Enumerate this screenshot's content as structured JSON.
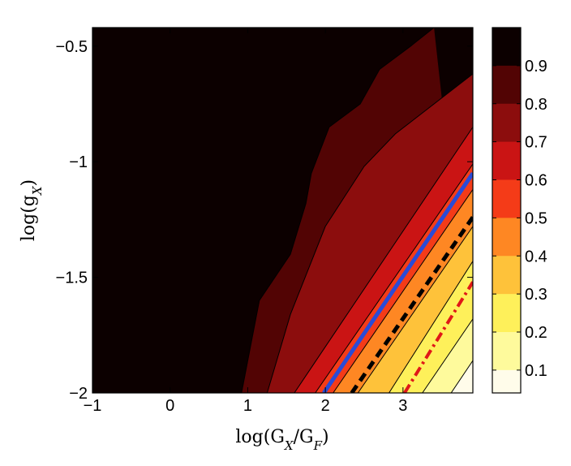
{
  "chart_data": {
    "type": "contour",
    "xlabel": "log(G_X/G_F)",
    "ylabel": "log(g_X)",
    "xlim": [
      -1,
      3.9
    ],
    "ylim": [
      -2,
      -0.42
    ],
    "x_ticks": [
      -1,
      0,
      1,
      2,
      3
    ],
    "x_tick_labels": [
      "−1",
      "0",
      "1",
      "2",
      "3"
    ],
    "y_ticks": [
      -2,
      -1.5,
      -1,
      -0.5
    ],
    "y_tick_labels": [
      "−2",
      "−1.5",
      "−1",
      "−0.5"
    ],
    "colorbar": {
      "colormap": "hot",
      "range": [
        0.04,
        1.0
      ],
      "ticks": [
        0.1,
        0.2,
        0.3,
        0.4,
        0.5,
        0.6,
        0.7,
        0.8,
        0.9
      ],
      "tick_labels": [
        "0.1",
        "0.2",
        "0.3",
        "0.4",
        "0.5",
        "0.6",
        "0.7",
        "0.8",
        "0.9"
      ]
    },
    "levels": [
      {
        "value": 0.95,
        "color": "#0c0000"
      },
      {
        "value": 0.85,
        "color": "#520404"
      },
      {
        "value": 0.75,
        "color": "#8c0d0d"
      },
      {
        "value": 0.65,
        "color": "#ca1414"
      },
      {
        "value": 0.55,
        "color": "#f43b18"
      },
      {
        "value": 0.45,
        "color": "#fe8723"
      },
      {
        "value": 0.35,
        "color": "#fec23a"
      },
      {
        "value": 0.25,
        "color": "#fef05a"
      },
      {
        "value": 0.15,
        "color": "#fefa9c"
      },
      {
        "value": 0.05,
        "color": "#fffcea"
      }
    ],
    "boundaries": [
      [
        [
          -0.6,
          -0.42
        ],
        [
          -0.6,
          -0.42
        ]
      ],
      [
        [
          0.92,
          -2
        ],
        [
          1.15,
          -1.6
        ],
        [
          1.55,
          -1.4
        ],
        [
          1.75,
          -1.18
        ],
        [
          1.82,
          -1.05
        ],
        [
          2.05,
          -0.85
        ],
        [
          2.45,
          -0.75
        ],
        [
          2.7,
          -0.6
        ],
        [
          3.1,
          -0.5
        ],
        [
          3.4,
          -0.42
        ]
      ],
      [
        [
          1.25,
          -2
        ],
        [
          1.55,
          -1.66
        ],
        [
          2.0,
          -1.28
        ],
        [
          2.5,
          -1.02
        ],
        [
          2.9,
          -0.88
        ],
        [
          3.9,
          -0.62
        ]
      ],
      [
        [
          1.6,
          -2
        ],
        [
          3.9,
          -0.85
        ]
      ],
      [
        [
          1.87,
          -2
        ],
        [
          3.9,
          -1.01
        ]
      ],
      [
        [
          2.1,
          -2
        ],
        [
          3.9,
          -1.12
        ]
      ],
      [
        [
          2.42,
          -2
        ],
        [
          3.9,
          -1.28
        ]
      ],
      [
        [
          2.82,
          -2
        ],
        [
          3.9,
          -1.43
        ]
      ],
      [
        [
          3.25,
          -2
        ],
        [
          3.9,
          -1.68
        ]
      ],
      [
        [
          3.62,
          -2
        ],
        [
          3.9,
          -1.86
        ]
      ]
    ],
    "lines": [
      {
        "style": "solid",
        "color": "#2a4bd7",
        "points": [
          [
            1.98,
            -2
          ],
          [
            3.9,
            -1.05
          ]
        ]
      },
      {
        "style": "dashed",
        "color": "#000000",
        "points": [
          [
            2.34,
            -2
          ],
          [
            3.9,
            -1.24
          ]
        ]
      },
      {
        "style": "dashdot",
        "color": "#e01818",
        "points": [
          [
            3.02,
            -2
          ],
          [
            3.9,
            -1.52
          ]
        ]
      }
    ]
  }
}
